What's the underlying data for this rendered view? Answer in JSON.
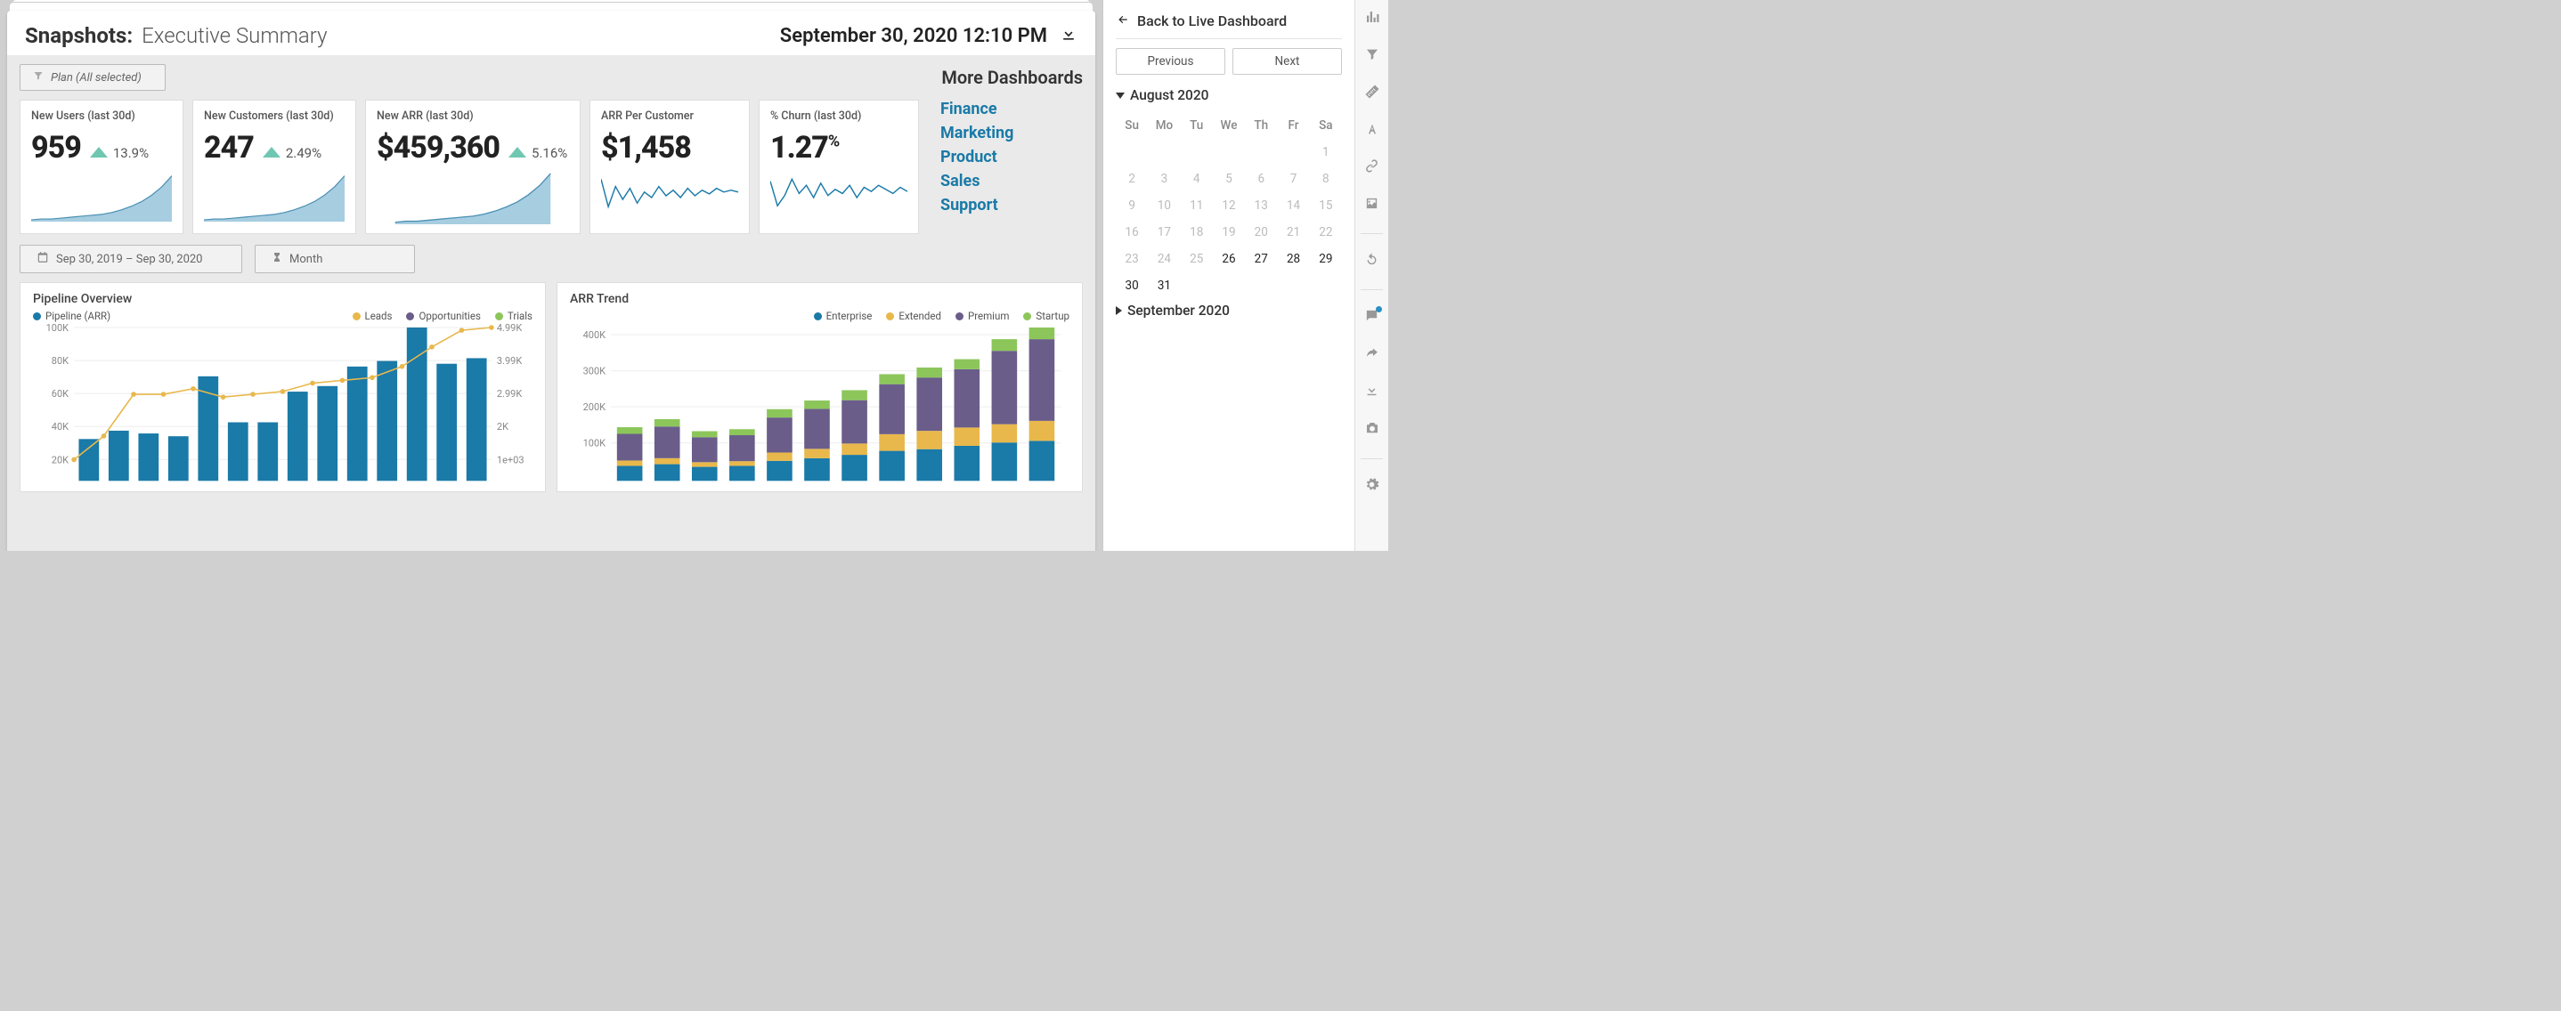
{
  "header": {
    "label": "Snapshots:",
    "title": "Executive Summary",
    "date_time": "September 30, 2020 12:10 PM"
  },
  "filter": {
    "label": "Plan (All selected)"
  },
  "more_dashboards_label": "More Dashboards",
  "dash_links": [
    "Finance",
    "Marketing",
    "Product",
    "Sales",
    "Support"
  ],
  "dash_link_color": "#1a7aa8",
  "kpi_colors": {
    "area_fill": "#a7cde0",
    "area_stroke": "#4a8fb3",
    "line_stroke": "#1a7aa8",
    "up_arrow": "#6fc7b1"
  },
  "kpis": [
    {
      "key": "new_users",
      "title": "New Users (last 30d)",
      "value": "959",
      "delta": "13.9%",
      "arrow": true,
      "type": "area",
      "spark": [
        2,
        3,
        3,
        4,
        5,
        6,
        7,
        8,
        10,
        13,
        17,
        22,
        29,
        38,
        50
      ]
    },
    {
      "key": "new_cust",
      "title": "New Customers (last 30d)",
      "value": "247",
      "delta": "2.49%",
      "arrow": true,
      "type": "area",
      "spark": [
        2,
        3,
        3,
        4,
        5,
        6,
        7,
        8,
        10,
        13,
        17,
        22,
        29,
        38,
        50
      ]
    },
    {
      "key": "new_arr",
      "title": "New ARR (last 30d)",
      "value": "$459,360",
      "delta": "5.16%",
      "arrow": true,
      "type": "area",
      "spark": [
        2,
        3,
        3,
        4,
        5,
        6,
        7,
        8,
        10,
        13,
        17,
        22,
        29,
        38,
        50
      ]
    },
    {
      "key": "arr_per_cust",
      "title": "ARR Per Customer",
      "value": "$1,458",
      "delta": "",
      "arrow": false,
      "type": "line",
      "spark": [
        40,
        10,
        32,
        18,
        30,
        14,
        26,
        20,
        32,
        22,
        28,
        20,
        30,
        22,
        28,
        24,
        30,
        26,
        28,
        26
      ]
    },
    {
      "key": "churn",
      "title": "% Churn (last 30d)",
      "value": "1.27",
      "delta": "",
      "arrow": false,
      "suffix": "%",
      "type": "line",
      "spark": [
        34,
        10,
        20,
        36,
        22,
        30,
        18,
        32,
        20,
        26,
        22,
        30,
        18,
        28,
        24,
        30,
        26,
        22,
        28,
        24
      ]
    }
  ],
  "date_controls": {
    "range": "Sep 30, 2019  –  Sep 30, 2020",
    "grain": "Month"
  },
  "pipeline_chart": {
    "title": "Pipeline Overview",
    "legend_left": {
      "label": "Pipeline (ARR)",
      "color": "#1a7aa8"
    },
    "legend_right": [
      {
        "label": "Leads",
        "color": "#e8b84c"
      },
      {
        "label": "Opportunities",
        "color": "#6a5d8a"
      },
      {
        "label": "Trials",
        "color": "#8cc65a"
      }
    ],
    "y_left_ticks": [
      "100K",
      "80K",
      "60K",
      "40K",
      "20K"
    ],
    "y_right_ticks": [
      "4.99K",
      "3.99K",
      "2.99K",
      "2K",
      "1e+03"
    ],
    "ymax": 110,
    "bars": [
      30,
      36,
      34,
      32,
      75,
      42,
      42,
      64,
      68,
      82,
      86,
      110,
      84,
      88
    ],
    "bar_color": "#1a7aa8",
    "line": [
      5,
      22,
      52,
      52,
      56,
      50,
      52,
      54,
      60,
      62,
      64,
      72,
      86,
      98,
      100
    ],
    "line_color": "#e8b84c"
  },
  "arr_chart": {
    "title": "ARR Trend",
    "legend": [
      {
        "label": "Enterprise",
        "color": "#1a7aa8"
      },
      {
        "label": "Extended",
        "color": "#e8b84c"
      },
      {
        "label": "Premium",
        "color": "#6a5d8a"
      },
      {
        "label": "Startup",
        "color": "#8cc65a"
      }
    ],
    "y_ticks": [
      "400K",
      "300K",
      "200K",
      "100K"
    ],
    "ymax": 460,
    "stacks": [
      [
        45,
        16,
        80,
        20
      ],
      [
        50,
        18,
        95,
        22
      ],
      [
        42,
        14,
        75,
        18
      ],
      [
        45,
        14,
        78,
        18
      ],
      [
        60,
        25,
        105,
        25
      ],
      [
        68,
        28,
        120,
        25
      ],
      [
        78,
        34,
        130,
        30
      ],
      [
        90,
        50,
        150,
        30
      ],
      [
        95,
        55,
        160,
        30
      ],
      [
        105,
        55,
        175,
        30
      ],
      [
        115,
        55,
        220,
        35
      ],
      [
        120,
        60,
        245,
        35
      ]
    ]
  },
  "side": {
    "back_label": "Back to Live Dashboard",
    "prev": "Previous",
    "next": "Next",
    "months": [
      {
        "name": "August 2020",
        "expanded": true
      },
      {
        "name": "September 2020",
        "expanded": false
      }
    ],
    "dow": [
      "Su",
      "Mo",
      "Tu",
      "We",
      "Th",
      "Fr",
      "Sa"
    ],
    "calendar": {
      "weeks": [
        [
          "",
          "",
          "",
          "",
          "",
          "",
          "1"
        ],
        [
          "2",
          "3",
          "4",
          "5",
          "6",
          "7",
          "8"
        ],
        [
          "9",
          "10",
          "11",
          "12",
          "13",
          "14",
          "15"
        ],
        [
          "16",
          "17",
          "18",
          "19",
          "20",
          "21",
          "22"
        ],
        [
          "23",
          "24",
          "25",
          "26",
          "27",
          "28",
          "29"
        ],
        [
          "30",
          "31",
          "",
          "",
          "",
          "",
          ""
        ]
      ],
      "active": [
        "26",
        "27",
        "28",
        "29",
        "30",
        "31"
      ]
    }
  }
}
